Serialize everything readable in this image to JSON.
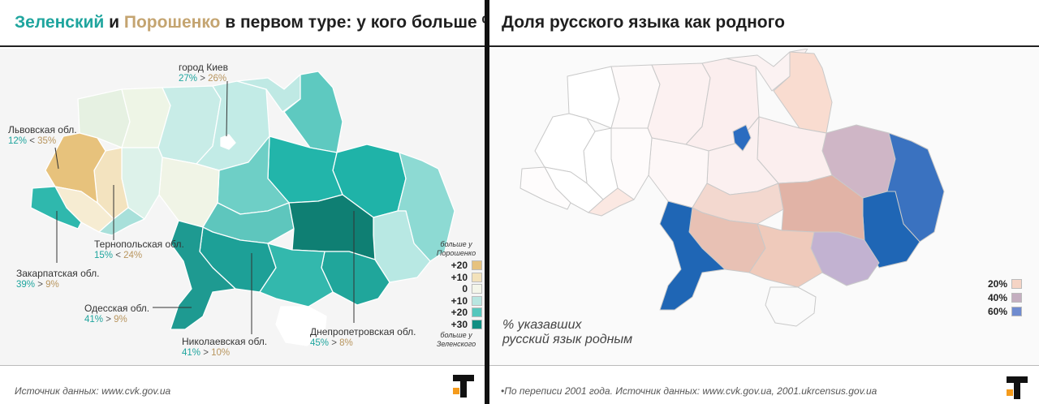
{
  "left": {
    "title": {
      "part1": "Зеленский",
      "part2": " и ",
      "part3": "Порошенко",
      "part4": " в первом туре: у кого больше %"
    },
    "labels": {
      "kiev": {
        "name": "город Киев",
        "v1": "27%",
        "sign": " > ",
        "v2": "26%"
      },
      "lviv": {
        "name": "Львовская обл.",
        "v1": "12%",
        "sign": " < ",
        "v2": "35%"
      },
      "ternopil": {
        "name": "Тернопольская обл.",
        "v1": "15%",
        "sign": " < ",
        "v2": "24%"
      },
      "zakarpattia": {
        "name": "Закарпатская обл.",
        "v1": "39%",
        "sign": " > ",
        "v2": "9%"
      },
      "odesa": {
        "name": "Одесская обл.",
        "v1": "41%",
        "sign": " > ",
        "v2": "9%"
      },
      "mykolaiv": {
        "name": "Николаевская обл.",
        "v1": "41%",
        "sign": " > ",
        "v2": "10%"
      },
      "dnipro": {
        "name": "Днепропетровская обл.",
        "v1": "45%",
        "sign": " > ",
        "v2": "8%"
      }
    },
    "legend": {
      "top_note_1": "больше у",
      "top_note_2": "Порошенко",
      "bottom_note_1": "больше у",
      "bottom_note_2": "Зеленского",
      "items": [
        {
          "label": "+20",
          "color": "#e6c27e"
        },
        {
          "label": "+10",
          "color": "#f3e2bb"
        },
        {
          "label": "0",
          "color": "#f4f6ea"
        },
        {
          "label": "+10",
          "color": "#b8e6e1"
        },
        {
          "label": "+20",
          "color": "#56c7bd"
        },
        {
          "label": "+30",
          "color": "#138f83"
        }
      ]
    },
    "source": "Источник данных: www.cvk.gov.ua"
  },
  "right": {
    "title": "Доля русского языка как родного",
    "map_note_1": "% указавших",
    "map_note_2": "русский язык родным",
    "legend": [
      {
        "label": "20%",
        "color": "#f5d4c5"
      },
      {
        "label": "40%",
        "color": "#c4aec0"
      },
      {
        "label": "60%",
        "color": "#6f8bcf"
      }
    ],
    "source": "•По переписи 2001 года. Источник данных: www.cvk.gov.ua, 2001.ukrcensus.gov.ua"
  },
  "colors": {
    "zelensky": "#1fa59e",
    "poroshenko": "#c4a470",
    "russian_high": "#1f66b5"
  }
}
